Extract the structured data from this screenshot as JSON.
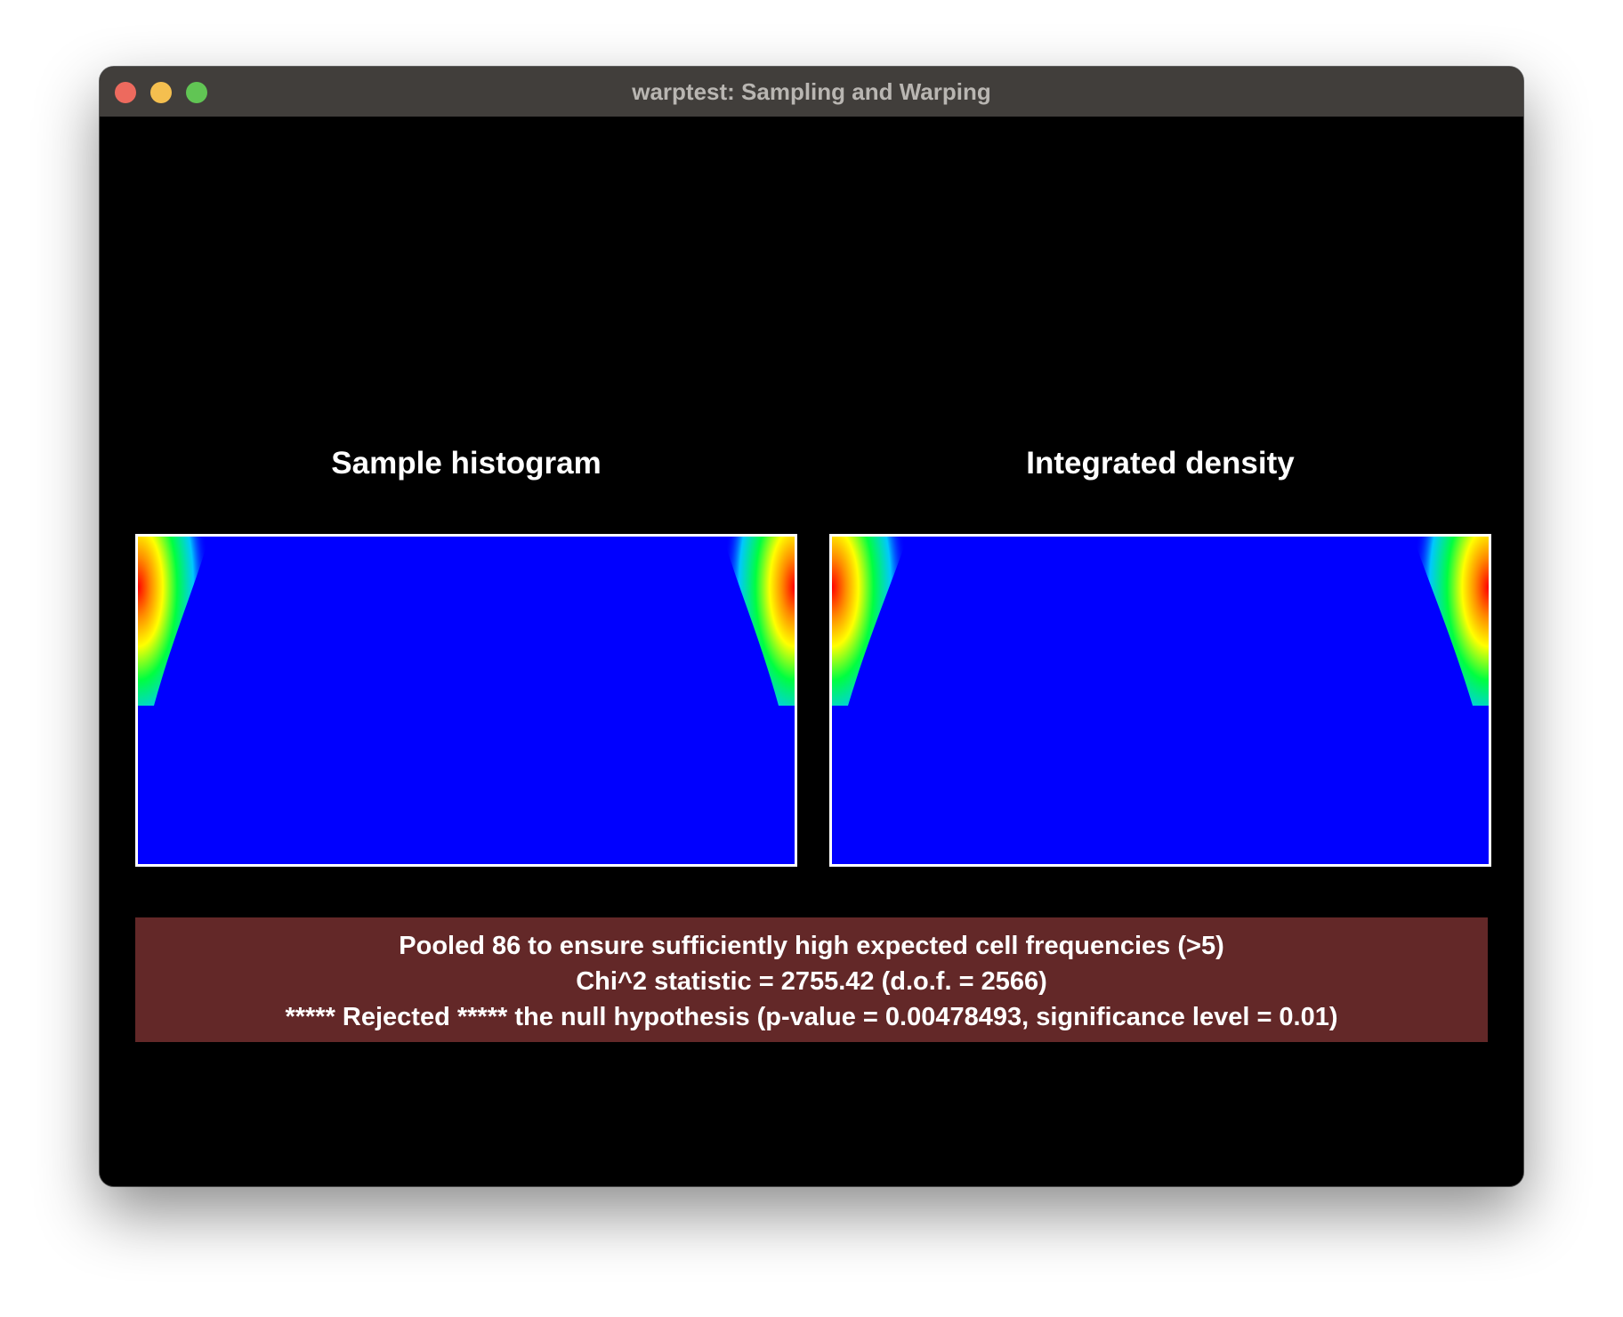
{
  "window": {
    "title": "warptest: Sampling and Warping"
  },
  "panels": {
    "left_title": "Sample histogram",
    "right_title": "Integrated density"
  },
  "status": {
    "lines": [
      "Pooled 86 to ensure sufficiently high expected cell frequencies (>5)",
      "Chi^2 statistic = 2755.42 (d.o.f. = 2566)",
      "***** Rejected ***** the null hypothesis (p-value = 0.00478493, significance level = 0.01)"
    ],
    "background_color": "#632828"
  },
  "colors": {
    "plot_background": "#0000ff",
    "plot_border": "#ffffff",
    "titlebar": "#413e3b"
  },
  "icons": {
    "close": "close-icon",
    "minimize": "minimize-icon",
    "zoom": "zoom-icon"
  }
}
